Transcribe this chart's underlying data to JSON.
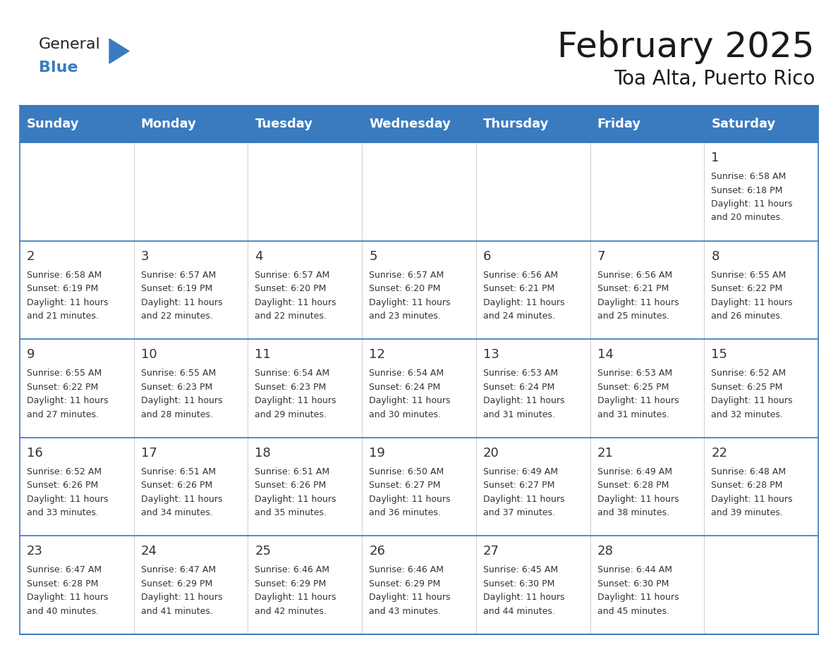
{
  "title": "February 2025",
  "subtitle": "Toa Alta, Puerto Rico",
  "header_bg_color": "#3a7bbf",
  "header_text_color": "#ffffff",
  "border_color": "#3a7bbf",
  "cell_border_color": "#cccccc",
  "day_headers": [
    "Sunday",
    "Monday",
    "Tuesday",
    "Wednesday",
    "Thursday",
    "Friday",
    "Saturday"
  ],
  "calendar": [
    [
      {
        "day": "",
        "sunrise": "",
        "sunset": "",
        "daylight": ""
      },
      {
        "day": "",
        "sunrise": "",
        "sunset": "",
        "daylight": ""
      },
      {
        "day": "",
        "sunrise": "",
        "sunset": "",
        "daylight": ""
      },
      {
        "day": "",
        "sunrise": "",
        "sunset": "",
        "daylight": ""
      },
      {
        "day": "",
        "sunrise": "",
        "sunset": "",
        "daylight": ""
      },
      {
        "day": "",
        "sunrise": "",
        "sunset": "",
        "daylight": ""
      },
      {
        "day": "1",
        "sunrise": "6:58 AM",
        "sunset": "6:18 PM",
        "daylight": "11 hours and 20 minutes."
      }
    ],
    [
      {
        "day": "2",
        "sunrise": "6:58 AM",
        "sunset": "6:19 PM",
        "daylight": "11 hours and 21 minutes."
      },
      {
        "day": "3",
        "sunrise": "6:57 AM",
        "sunset": "6:19 PM",
        "daylight": "11 hours and 22 minutes."
      },
      {
        "day": "4",
        "sunrise": "6:57 AM",
        "sunset": "6:20 PM",
        "daylight": "11 hours and 22 minutes."
      },
      {
        "day": "5",
        "sunrise": "6:57 AM",
        "sunset": "6:20 PM",
        "daylight": "11 hours and 23 minutes."
      },
      {
        "day": "6",
        "sunrise": "6:56 AM",
        "sunset": "6:21 PM",
        "daylight": "11 hours and 24 minutes."
      },
      {
        "day": "7",
        "sunrise": "6:56 AM",
        "sunset": "6:21 PM",
        "daylight": "11 hours and 25 minutes."
      },
      {
        "day": "8",
        "sunrise": "6:55 AM",
        "sunset": "6:22 PM",
        "daylight": "11 hours and 26 minutes."
      }
    ],
    [
      {
        "day": "9",
        "sunrise": "6:55 AM",
        "sunset": "6:22 PM",
        "daylight": "11 hours and 27 minutes."
      },
      {
        "day": "10",
        "sunrise": "6:55 AM",
        "sunset": "6:23 PM",
        "daylight": "11 hours and 28 minutes."
      },
      {
        "day": "11",
        "sunrise": "6:54 AM",
        "sunset": "6:23 PM",
        "daylight": "11 hours and 29 minutes."
      },
      {
        "day": "12",
        "sunrise": "6:54 AM",
        "sunset": "6:24 PM",
        "daylight": "11 hours and 30 minutes."
      },
      {
        "day": "13",
        "sunrise": "6:53 AM",
        "sunset": "6:24 PM",
        "daylight": "11 hours and 31 minutes."
      },
      {
        "day": "14",
        "sunrise": "6:53 AM",
        "sunset": "6:25 PM",
        "daylight": "11 hours and 31 minutes."
      },
      {
        "day": "15",
        "sunrise": "6:52 AM",
        "sunset": "6:25 PM",
        "daylight": "11 hours and 32 minutes."
      }
    ],
    [
      {
        "day": "16",
        "sunrise": "6:52 AM",
        "sunset": "6:26 PM",
        "daylight": "11 hours and 33 minutes."
      },
      {
        "day": "17",
        "sunrise": "6:51 AM",
        "sunset": "6:26 PM",
        "daylight": "11 hours and 34 minutes."
      },
      {
        "day": "18",
        "sunrise": "6:51 AM",
        "sunset": "6:26 PM",
        "daylight": "11 hours and 35 minutes."
      },
      {
        "day": "19",
        "sunrise": "6:50 AM",
        "sunset": "6:27 PM",
        "daylight": "11 hours and 36 minutes."
      },
      {
        "day": "20",
        "sunrise": "6:49 AM",
        "sunset": "6:27 PM",
        "daylight": "11 hours and 37 minutes."
      },
      {
        "day": "21",
        "sunrise": "6:49 AM",
        "sunset": "6:28 PM",
        "daylight": "11 hours and 38 minutes."
      },
      {
        "day": "22",
        "sunrise": "6:48 AM",
        "sunset": "6:28 PM",
        "daylight": "11 hours and 39 minutes."
      }
    ],
    [
      {
        "day": "23",
        "sunrise": "6:47 AM",
        "sunset": "6:28 PM",
        "daylight": "11 hours and 40 minutes."
      },
      {
        "day": "24",
        "sunrise": "6:47 AM",
        "sunset": "6:29 PM",
        "daylight": "11 hours and 41 minutes."
      },
      {
        "day": "25",
        "sunrise": "6:46 AM",
        "sunset": "6:29 PM",
        "daylight": "11 hours and 42 minutes."
      },
      {
        "day": "26",
        "sunrise": "6:46 AM",
        "sunset": "6:29 PM",
        "daylight": "11 hours and 43 minutes."
      },
      {
        "day": "27",
        "sunrise": "6:45 AM",
        "sunset": "6:30 PM",
        "daylight": "11 hours and 44 minutes."
      },
      {
        "day": "28",
        "sunrise": "6:44 AM",
        "sunset": "6:30 PM",
        "daylight": "11 hours and 45 minutes."
      },
      {
        "day": "",
        "sunrise": "",
        "sunset": "",
        "daylight": ""
      }
    ]
  ],
  "title_fontsize": 36,
  "subtitle_fontsize": 20,
  "header_fontsize": 13,
  "day_num_fontsize": 13,
  "cell_text_fontsize": 9,
  "logo_general_fontsize": 16,
  "logo_blue_fontsize": 16
}
